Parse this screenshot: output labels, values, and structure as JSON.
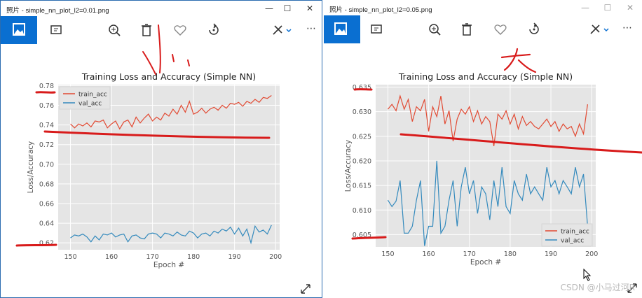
{
  "windows": [
    {
      "title": "照片 - simple_nn_plot_l2=0.01.png",
      "controls": {
        "minimize": "—",
        "maximize": "☐",
        "close": "✕"
      },
      "toolbar": [
        "photo-icon",
        "add-to-album-icon",
        "zoom-in-icon",
        "delete-icon",
        "favorite-icon",
        "rotate-icon",
        "edit-icon",
        "more-icon"
      ],
      "more_label": "⋯",
      "chart_data": {
        "type": "line",
        "title": "Training Loss and Accuracy (Simple NN)",
        "xlabel": "Epoch #",
        "ylabel": "Loss/Accuracy",
        "xlim": [
          147,
          201
        ],
        "ylim": [
          0.613,
          0.781
        ],
        "xticks": [
          150,
          160,
          170,
          180,
          190,
          200
        ],
        "yticks": [
          0.62,
          0.64,
          0.66,
          0.68,
          0.7,
          0.72,
          0.74,
          0.76,
          0.78
        ],
        "ytick_labels": [
          "0.62",
          "0.64",
          "0.66",
          "0.68",
          "0.70",
          "0.72",
          "0.74",
          "0.76",
          "0.78"
        ],
        "legend_loc": "upper-left",
        "x_start": 150,
        "series": [
          {
            "name": "train_acc",
            "color": "#e24a33",
            "values": [
              0.741,
              0.737,
              0.741,
              0.739,
              0.742,
              0.738,
              0.744,
              0.743,
              0.745,
              0.737,
              0.741,
              0.744,
              0.736,
              0.743,
              0.745,
              0.738,
              0.748,
              0.742,
              0.747,
              0.751,
              0.744,
              0.748,
              0.745,
              0.752,
              0.749,
              0.756,
              0.751,
              0.76,
              0.753,
              0.764,
              0.751,
              0.753,
              0.757,
              0.752,
              0.756,
              0.758,
              0.755,
              0.76,
              0.757,
              0.762,
              0.761,
              0.763,
              0.759,
              0.764,
              0.762,
              0.766,
              0.763,
              0.768,
              0.767,
              0.77
            ]
          },
          {
            "name": "val_acc",
            "color": "#348abd",
            "values": [
              0.625,
              0.628,
              0.627,
              0.629,
              0.626,
              0.621,
              0.627,
              0.623,
              0.629,
              0.628,
              0.63,
              0.626,
              0.628,
              0.629,
              0.621,
              0.627,
              0.628,
              0.625,
              0.624,
              0.629,
              0.63,
              0.629,
              0.625,
              0.63,
              0.629,
              0.627,
              0.631,
              0.628,
              0.627,
              0.632,
              0.63,
              0.625,
              0.629,
              0.63,
              0.627,
              0.632,
              0.63,
              0.634,
              0.632,
              0.636,
              0.629,
              0.635,
              0.627,
              0.634,
              0.62,
              0.637,
              0.631,
              0.633,
              0.629,
              0.638
            ]
          }
        ]
      }
    },
    {
      "title": "照片 - simple_nn_plot_l2=0.05.png",
      "controls": {
        "minimize": "—",
        "maximize": "☐",
        "close": "✕"
      },
      "toolbar": [
        "photo-icon",
        "add-to-album-icon",
        "zoom-in-icon",
        "delete-icon",
        "favorite-icon",
        "rotate-icon",
        "edit-icon",
        "more-icon"
      ],
      "more_label": "⋯",
      "chart_data": {
        "type": "line",
        "title": "Training Loss and Accuracy (Simple NN)",
        "xlabel": "Epoch #",
        "ylabel": "Loss/Accuracy",
        "xlim": [
          147,
          201
        ],
        "ylim": [
          0.6025,
          0.6355
        ],
        "xticks": [
          150,
          160,
          170,
          180,
          190,
          200
        ],
        "yticks": [
          0.605,
          0.61,
          0.615,
          0.62,
          0.625,
          0.63,
          0.635
        ],
        "ytick_labels": [
          "0.605",
          "0.610",
          "0.615",
          "0.620",
          "0.625",
          "0.630",
          "0.635"
        ],
        "legend_loc": "lower-right",
        "x_start": 150,
        "series": [
          {
            "name": "train_acc",
            "color": "#e24a33",
            "values": [
              0.6305,
              0.6315,
              0.6302,
              0.6332,
              0.6305,
              0.6325,
              0.628,
              0.631,
              0.6302,
              0.6325,
              0.626,
              0.631,
              0.629,
              0.6332,
              0.6275,
              0.6302,
              0.624,
              0.6285,
              0.6305,
              0.6295,
              0.631,
              0.628,
              0.6302,
              0.6275,
              0.629,
              0.628,
              0.623,
              0.6295,
              0.6285,
              0.6302,
              0.6275,
              0.6295,
              0.6265,
              0.629,
              0.6272,
              0.628,
              0.627,
              0.6265,
              0.6275,
              0.6285,
              0.627,
              0.628,
              0.626,
              0.6275,
              0.6265,
              0.627,
              0.625,
              0.6275,
              0.6255,
              0.6315
            ]
          },
          {
            "name": "val_acc",
            "color": "#348abd",
            "values": [
              0.612,
              0.6107,
              0.6118,
              0.616,
              0.6053,
              0.6053,
              0.6067,
              0.612,
              0.616,
              0.6027,
              0.6067,
              0.6067,
              0.62,
              0.6053,
              0.6067,
              0.612,
              0.616,
              0.6067,
              0.6147,
              0.6187,
              0.6133,
              0.616,
              0.6093,
              0.6147,
              0.6133,
              0.608,
              0.616,
              0.6107,
              0.6187,
              0.6107,
              0.6093,
              0.616,
              0.6133,
              0.612,
              0.6173,
              0.6133,
              0.6147,
              0.6133,
              0.612,
              0.6187,
              0.6147,
              0.616,
              0.6133,
              0.616,
              0.6147,
              0.6133,
              0.6187,
              0.6147,
              0.6173,
              0.6067
            ]
          }
        ]
      }
    }
  ],
  "watermark": "CSDN @小马过河R"
}
